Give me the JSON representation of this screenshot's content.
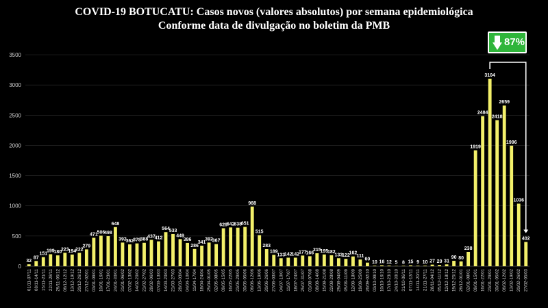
{
  "header": {
    "title": "COVID-19 BOTUCATU: Casos novos (valores absolutos) por semana epidemiológica",
    "subtitle": "Conforme data de divulgação no boletim da PMB"
  },
  "badge": {
    "text": "87%",
    "icon": "arrow-down-icon",
    "color": "#2fb53a"
  },
  "colors": {
    "background": "#000000",
    "bar": "#f3f06a",
    "text": "#ffffff",
    "grid": "#2c2c2c"
  },
  "chart_data": {
    "type": "bar",
    "title": "COVID-19 BOTUCATU: Casos novos (valores absolutos) por semana epidemiológica",
    "subtitle": "Conforme data de divulgação no boletim da PMB",
    "ylim": [
      0,
      3500
    ],
    "yticks": [
      0,
      500,
      1000,
      1500,
      2000,
      2500,
      3000,
      3500
    ],
    "grid": true,
    "categories": [
      "01/11-07/11",
      "08/11-14/11",
      "15/11-21/11",
      "22/11-28/11",
      "29/11-05/12",
      "06/12-12/12",
      "13/12-19/12",
      "20/12-26/12",
      "27/12-02/01",
      "03/01-09/01",
      "10/01-16/01",
      "17/01-23/01",
      "24/01-30/01",
      "31/01-06/02",
      "07/02-13/02",
      "14/02-20/02",
      "21/02-27/02",
      "28/02-06/03",
      "07/03-13/03",
      "14/03-20/03",
      "21/03-27/03",
      "28/03-03/04",
      "04/04-10/04",
      "11/04-17/04",
      "18/04-24/04",
      "25/04-01/05",
      "02/05-08/05",
      "09/05-15/05",
      "16/05-22/05",
      "23/05-29/05",
      "30/05-05/06",
      "06/06-12/06",
      "13/06-19/06",
      "20/06-26/06",
      "27/06-03/07",
      "04/07-10/07",
      "11/07-17/07",
      "18/07-24/07",
      "25/07-31/07",
      "01/08-07/08",
      "08/08-14/08",
      "15/08-21/08",
      "22/08-28/08",
      "29/08-04/09",
      "05/09-11/09",
      "12/09-18/09",
      "19/09-25/09",
      "26/09-02/10",
      "03/10-09/10",
      "10/10-16/10",
      "17/10-23/10",
      "24/10-30/10",
      "31/10-06/11",
      "07/11-13/11",
      "14/11-20/11",
      "21/11-27/11",
      "28/11-04/12",
      "05/12-11/12",
      "12/12-18/12",
      "19/12-25/12",
      "26/12-01/01",
      "02/01-08/01",
      "09/01-15/01",
      "16/01-22/01",
      "23/01-29/01",
      "30/01-05/02",
      "06/02-12/02",
      "13/02-19/02",
      "20/02-26/02",
      "27/02-05/03"
    ],
    "values": [
      32,
      87,
      151,
      199,
      180,
      223,
      194,
      222,
      279,
      471,
      506,
      498,
      648,
      392,
      362,
      378,
      388,
      437,
      412,
      564,
      533,
      449,
      386,
      286,
      341,
      392,
      367,
      629,
      642,
      638,
      651,
      988,
      515,
      283,
      189,
      133,
      142,
      142,
      177,
      166,
      215,
      195,
      182,
      133,
      122,
      162,
      111,
      60,
      10,
      16,
      12,
      5,
      8,
      15,
      9,
      10,
      27,
      20,
      31,
      90,
      80,
      238,
      1919,
      2484,
      3104,
      2418,
      2659,
      1996,
      1036,
      402
    ],
    "data_labels": [
      "32",
      "87",
      "151",
      "199",
      "180",
      "223",
      "194",
      "222",
      "279",
      "471",
      "506",
      "498",
      "648",
      "392",
      "362",
      "378",
      "388",
      "437",
      "412",
      "564",
      "533",
      "449",
      "386",
      "286",
      "341",
      "392",
      "367",
      "629",
      "642",
      "638",
      "651",
      "988",
      "515",
      "283",
      "189",
      "133",
      "142",
      "142",
      "177",
      "166",
      "215",
      "195",
      "182",
      "133",
      "122",
      "162",
      "111",
      "60",
      "10",
      "16",
      "12",
      "5",
      "8",
      "15",
      "9",
      "10",
      "27",
      "20",
      "31",
      "90",
      "80",
      "238",
      "1919",
      "2484",
      "3104",
      "2418",
      "2659",
      "1996",
      "1036",
      "402"
    ],
    "annotation": {
      "text": "87%",
      "from_index": 64,
      "to_index": 69
    }
  }
}
